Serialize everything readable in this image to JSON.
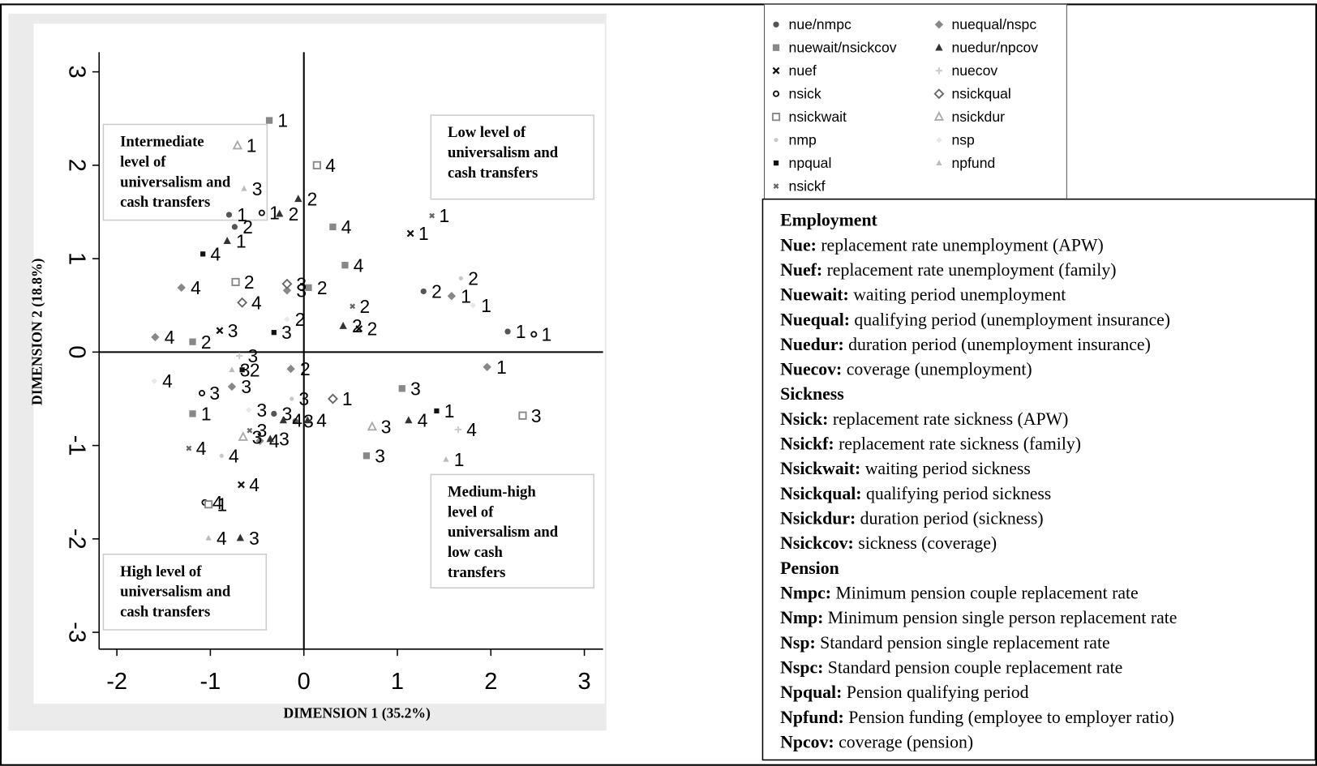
{
  "chart_data": {
    "type": "scatter",
    "x_label": "DIMENSION 1 (35.2%)",
    "y_label": "DIMENSION 2 (18.8%)",
    "xlim": [
      -2.19,
      3.2
    ],
    "ylim": [
      -3.18,
      3.21
    ],
    "xticks": [
      -2,
      -1,
      0,
      1,
      2,
      3
    ],
    "yticks": [
      -3,
      -2,
      -1,
      0,
      1,
      2,
      3
    ],
    "annotations": [
      [
        "Intermediate",
        "level of",
        "universalism and",
        "cash transfers"
      ],
      [
        "Low level of",
        "universalism and",
        "cash transfers"
      ],
      [
        "Medium-high",
        "level of",
        "universalism and",
        "low cash",
        "transfers"
      ],
      [
        "High level of",
        "universalism and",
        "cash transfers"
      ]
    ],
    "series": [
      {
        "name": "nue/nmpc",
        "color": "#555555",
        "marker": "circle",
        "marker_size": 7,
        "x": [
          -0.8,
          -0.74,
          1.28,
          2.18,
          -0.32,
          -0.09
        ],
        "values": [
          1.47,
          1.34,
          0.65,
          0.22,
          -0.66,
          -0.74
        ],
        "point_labels": [
          "1",
          "2",
          "2",
          "1",
          "3",
          "3"
        ]
      },
      {
        "name": "nuequal/nspc",
        "color": "#888888",
        "marker": "diamond",
        "marker_size": 10,
        "x": [
          -1.31,
          -1.59,
          1.58,
          1.96,
          -0.14,
          -0.77,
          -0.47,
          -0.18
        ],
        "values": [
          0.69,
          0.16,
          0.6,
          -0.16,
          -0.18,
          -0.37,
          -0.95,
          0.66
        ],
        "point_labels": [
          "4",
          "4",
          "1",
          "1",
          "2",
          "3",
          "4",
          "3"
        ]
      },
      {
        "name": "nuewait/nsickcov",
        "color": "#888888",
        "marker": "square",
        "marker_size": 8,
        "x": [
          -0.37,
          0.31,
          0.44,
          0.05,
          -1.19,
          1.05,
          -1.19,
          0.67
        ],
        "values": [
          2.48,
          1.34,
          0.93,
          0.69,
          0.11,
          -0.39,
          -0.66,
          -1.11
        ],
        "point_labels": [
          "1",
          "4",
          "4",
          "2",
          "2",
          "3",
          "1",
          "3"
        ]
      },
      {
        "name": "nuedur/npcov",
        "color": "#333333",
        "marker": "triangle",
        "marker_size": 9,
        "x": [
          -0.82,
          -0.06,
          -0.26,
          0.42,
          1.12,
          -0.36,
          -0.22,
          -0.68,
          0.04
        ],
        "values": [
          1.19,
          1.64,
          1.48,
          0.28,
          -0.73,
          -0.93,
          -0.73,
          -1.99,
          -0.73
        ],
        "point_labels": [
          "1",
          "2",
          "2",
          "2",
          "4",
          "3",
          "4",
          "3",
          "4"
        ]
      },
      {
        "name": "nuef",
        "color": "#111111",
        "marker": "x",
        "marker_size": 7,
        "x": [
          1.14,
          0.59,
          -0.9,
          -0.67
        ],
        "values": [
          1.27,
          0.25,
          0.23,
          -1.42
        ],
        "point_labels": [
          "1",
          "2",
          "3",
          "4"
        ]
      },
      {
        "name": "nuecov",
        "color": "#cccccc",
        "marker": "plus",
        "marker_size": 8,
        "x": [
          1.65,
          -0.69
        ],
        "values": [
          -0.83,
          -0.04
        ],
        "point_labels": [
          "4",
          "3"
        ]
      },
      {
        "name": "nsick",
        "color": "#111111",
        "marker": "circle-open",
        "marker_size": 6,
        "x": [
          2.46,
          -1.09,
          -1.06,
          -0.45
        ],
        "values": [
          0.19,
          -0.44,
          -1.61,
          1.49
        ],
        "point_labels": [
          "1",
          "3",
          "4",
          "1"
        ]
      },
      {
        "name": "nsickqual",
        "color": "#666666",
        "marker": "diamond-open",
        "marker_size": 10,
        "x": [
          -0.18,
          -0.66,
          0.31
        ],
        "values": [
          0.73,
          0.53,
          -0.5
        ],
        "point_labels": [
          "3",
          "4",
          "1"
        ]
      },
      {
        "name": "nsickwait",
        "color": "#888888",
        "marker": "square-open",
        "marker_size": 8,
        "x": [
          0.14,
          -0.73,
          2.34,
          -1.02
        ],
        "values": [
          2.0,
          0.75,
          -0.68,
          -1.63
        ],
        "point_labels": [
          "4",
          "2",
          "3",
          "1"
        ]
      },
      {
        "name": "nsickdur",
        "color": "#aaaaaa",
        "marker": "triangle-open",
        "marker_size": 9,
        "x": [
          -0.71,
          0.73,
          -0.65
        ],
        "values": [
          2.21,
          -0.8,
          -0.91
        ],
        "point_labels": [
          "1",
          "3",
          "3"
        ]
      },
      {
        "name": "nmp",
        "color": "#c8c8c8",
        "marker": "circle",
        "marker_size": 5,
        "x": [
          1.68,
          -0.13,
          -0.88
        ],
        "values": [
          0.79,
          -0.5,
          -1.11
        ],
        "point_labels": [
          "2",
          "3",
          "4"
        ]
      },
      {
        "name": "nsp",
        "color": "#e8e8e8",
        "marker": "diamond",
        "marker_size": 7,
        "x": [
          1.81,
          -1.6,
          -0.59,
          -0.18
        ],
        "values": [
          0.5,
          -0.31,
          -0.62,
          0.35
        ],
        "point_labels": [
          "1",
          "4",
          "3",
          "2"
        ]
      },
      {
        "name": "npqual",
        "color": "#111111",
        "marker": "square",
        "marker_size": 6,
        "x": [
          -1.08,
          -0.32,
          1.42,
          -0.66
        ],
        "values": [
          1.05,
          0.21,
          -0.63,
          -0.19
        ],
        "point_labels": [
          "4",
          "3",
          "1",
          "2"
        ]
      },
      {
        "name": "npfund",
        "color": "#bbbbbb",
        "marker": "triangle",
        "marker_size": 7,
        "x": [
          -0.64,
          1.52,
          -1.02,
          -0.77
        ],
        "values": [
          1.75,
          -1.15,
          -1.99,
          -0.19
        ],
        "point_labels": [
          "3",
          "1",
          "4",
          "3"
        ]
      },
      {
        "name": "nsickf",
        "color": "#666666",
        "marker": "x",
        "marker_size": 5,
        "x": [
          1.37,
          0.52,
          -0.58,
          -1.23
        ],
        "values": [
          1.46,
          0.49,
          -0.84,
          -1.03
        ],
        "point_labels": [
          "1",
          "2",
          "3",
          "4"
        ]
      }
    ]
  },
  "glossary": [
    {
      "heading": "Employment",
      "items": [
        {
          "term": "Nue:",
          "text": "replacement rate unemployment (APW)"
        },
        {
          "term": "Nuef:",
          "text": "replacement rate unemployment (family)"
        },
        {
          "term": "Nuewait:",
          "text": "waiting period unemployment"
        },
        {
          "term": "Nuequal:",
          "text": "qualifying period (unemployment insurance)"
        },
        {
          "term": "Nuedur:",
          "text": "duration period (unemployment insurance)"
        },
        {
          "term": "Nuecov:",
          "text": "coverage (unemployment)"
        }
      ]
    },
    {
      "heading": "Sickness",
      "items": [
        {
          "term": "Nsick:",
          "text": "replacement rate sickness (APW)"
        },
        {
          "term": "Nsickf:",
          "text": "replacement rate sickness (family)"
        },
        {
          "term": "Nsickwait:",
          "text": "waiting period sickness"
        },
        {
          "term": "Nsickqual:",
          "text": "qualifying period sickness"
        },
        {
          "term": "Nsickdur:",
          "text": "duration period (sickness)"
        },
        {
          "term": "Nsickcov:",
          "text": "sickness (coverage)"
        }
      ]
    },
    {
      "heading": "Pension",
      "items": [
        {
          "term": "Nmpc:",
          "text": "Minimum pension couple replacement rate"
        },
        {
          "term": "Nmp:",
          "text": "Minimum pension single person replacement rate"
        },
        {
          "term": "Nsp:",
          "text": "Standard pension single replacement rate"
        },
        {
          "term": "Nspc:",
          "text": "Standard pension couple replacement rate"
        },
        {
          "term": "Npqual:",
          "text": "Pension qualifying period"
        },
        {
          "term": "Npfund:",
          "text": "Pension funding (employee to employer ratio)"
        },
        {
          "term": "Npcov:",
          "text": "coverage (pension)"
        }
      ]
    }
  ]
}
